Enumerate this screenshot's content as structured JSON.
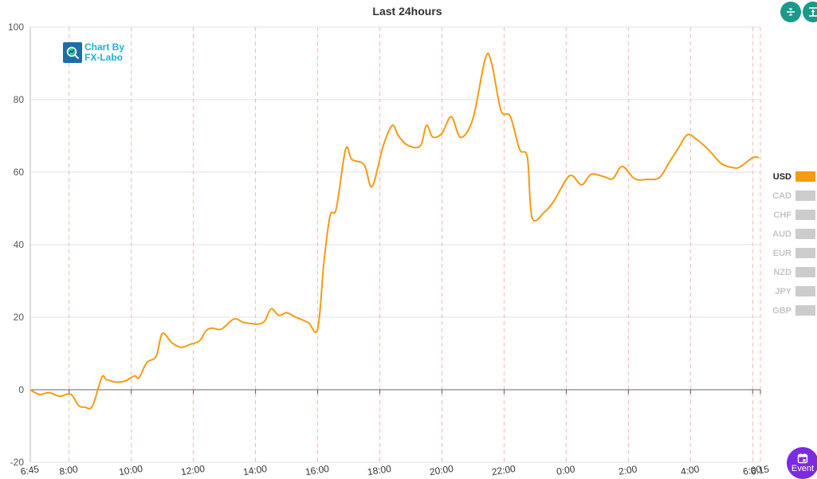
{
  "chart_data": {
    "type": "line",
    "title": "Last 24hours",
    "ylim": [
      -20,
      100
    ],
    "yticks": [
      -20,
      0,
      20,
      40,
      60,
      80,
      100
    ],
    "xlim": [
      6.75,
      30.25
    ],
    "xticks": [
      {
        "label": "6:45",
        "x": 6.75
      },
      {
        "label": "8:00",
        "x": 8
      },
      {
        "label": "10:00",
        "x": 10
      },
      {
        "label": "12:00",
        "x": 12
      },
      {
        "label": "14:00",
        "x": 14
      },
      {
        "label": "16:00",
        "x": 16
      },
      {
        "label": "18:00",
        "x": 18
      },
      {
        "label": "20:00",
        "x": 20
      },
      {
        "label": "22:00",
        "x": 22
      },
      {
        "label": "0:00",
        "x": 24
      },
      {
        "label": "2:00",
        "x": 26
      },
      {
        "label": "4:00",
        "x": 28
      },
      {
        "label": "6:00",
        "x": 30
      },
      {
        "label": "6:15",
        "x": 30.25
      }
    ],
    "grid": true,
    "legend_position": "right",
    "series": [
      {
        "name": "USD",
        "color": "#f59b14",
        "active": true,
        "x": [
          6.75,
          7.05,
          7.35,
          7.7,
          8.05,
          8.3,
          8.5,
          8.75,
          9.05,
          9.2,
          9.5,
          9.8,
          10.1,
          10.25,
          10.5,
          10.8,
          11.0,
          11.3,
          11.6,
          11.9,
          12.2,
          12.4,
          12.6,
          12.9,
          13.3,
          13.6,
          13.8,
          14.1,
          14.3,
          14.5,
          14.75,
          15.0,
          15.3,
          15.7,
          16.0,
          16.2,
          16.4,
          16.6,
          16.9,
          17.1,
          17.5,
          17.75,
          18.1,
          18.4,
          18.6,
          18.9,
          19.3,
          19.5,
          19.7,
          20.0,
          20.3,
          20.6,
          21.0,
          21.4,
          21.6,
          21.9,
          22.2,
          22.5,
          22.75,
          22.9,
          23.3,
          23.6,
          24.0,
          24.2,
          24.5,
          24.8,
          25.2,
          25.5,
          25.8,
          26.2,
          26.6,
          27.0,
          27.3,
          27.6,
          27.9,
          28.2,
          28.6,
          29.0,
          29.4,
          29.6,
          30.0,
          30.2
        ],
        "values": [
          0,
          -1.3,
          -0.8,
          -1.8,
          -1.2,
          -4.3,
          -4.8,
          -4.5,
          3.4,
          2.8,
          2.1,
          2.4,
          3.8,
          3.3,
          7.5,
          9.2,
          15.5,
          13.0,
          11.7,
          12.5,
          13.5,
          16.2,
          17.0,
          16.7,
          19.5,
          18.6,
          18.3,
          18.1,
          19.0,
          22.3,
          20.5,
          21.2,
          20.0,
          18.5,
          16.8,
          35.0,
          48.0,
          50.0,
          66.3,
          63.5,
          62.0,
          56.0,
          67.0,
          72.9,
          70.0,
          67.4,
          67.2,
          72.9,
          69.7,
          70.7,
          75.3,
          69.6,
          74.8,
          91.5,
          90.0,
          77.0,
          75.4,
          66.3,
          64.0,
          47.5,
          49.0,
          52.0,
          58.0,
          59.0,
          56.5,
          59.4,
          58.8,
          58.2,
          61.6,
          58.2,
          58.0,
          58.5,
          62.5,
          66.5,
          70.3,
          69.0,
          66.0,
          62.3,
          61.2,
          61.5,
          64.0,
          64.0
        ]
      },
      {
        "name": "CAD",
        "color": "#cccccc",
        "active": false
      },
      {
        "name": "CHF",
        "color": "#cccccc",
        "active": false
      },
      {
        "name": "AUD",
        "color": "#cccccc",
        "active": false
      },
      {
        "name": "EUR",
        "color": "#cccccc",
        "active": false
      },
      {
        "name": "NZD",
        "color": "#cccccc",
        "active": false
      },
      {
        "name": "JPY",
        "color": "#cccccc",
        "active": false
      },
      {
        "name": "GBP",
        "color": "#cccccc",
        "active": false
      }
    ]
  },
  "logo": {
    "line1": "Chart By",
    "line2": "FX-Labo"
  },
  "toolbar": {
    "zoom_icon": "compress-vertical-icon",
    "reset_icon": "align-top-icon"
  },
  "event_button": {
    "label": "Event",
    "icon": "calendar-icon"
  }
}
